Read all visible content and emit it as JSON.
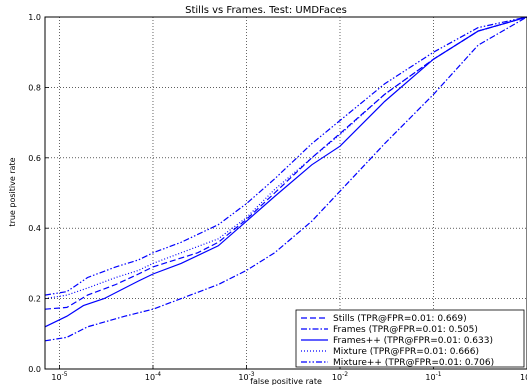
{
  "chart_data": {
    "type": "line",
    "title": "Stills vs Frames. Test: UMDFaces",
    "xlabel": "false positive rate",
    "ylabel": "true positive rate",
    "xscale": "log",
    "xlim": [
      7e-06,
      1.0
    ],
    "ylim": [
      0.0,
      1.0
    ],
    "x_ticks": [
      1e-05,
      0.0001,
      0.001,
      0.01,
      0.1,
      1.0
    ],
    "x_tick_labels": [
      {
        "base": "10",
        "exp": "-5"
      },
      {
        "base": "10",
        "exp": "-4"
      },
      {
        "base": "10",
        "exp": "-3"
      },
      {
        "base": "10",
        "exp": "-2"
      },
      {
        "base": "10",
        "exp": "-1"
      },
      {
        "base": "10",
        "exp": "0"
      }
    ],
    "y_ticks": [
      0.0,
      0.2,
      0.4,
      0.6,
      0.8,
      1.0
    ],
    "y_tick_labels": [
      "0.0",
      "0.2",
      "0.4",
      "0.6",
      "0.8",
      "1.0"
    ],
    "grid": true,
    "legend_position": "bottom-right",
    "series": [
      {
        "name": "Stills (TPR@FPR=0.01: 0.669)",
        "color": "#0000ff",
        "dash": "dashed",
        "x": [
          7e-06,
          1.2e-05,
          2e-05,
          4e-05,
          7e-05,
          0.0001,
          0.0003,
          0.0005,
          0.001,
          0.002,
          0.005,
          0.01,
          0.03,
          0.1,
          0.3,
          1.0
        ],
        "y": [
          0.17,
          0.175,
          0.21,
          0.24,
          0.27,
          0.29,
          0.33,
          0.36,
          0.425,
          0.5,
          0.6,
          0.669,
          0.78,
          0.88,
          0.96,
          1.0
        ]
      },
      {
        "name": "Frames (TPR@FPR=0.01: 0.505)",
        "color": "#0000ff",
        "dash": "dashdot",
        "x": [
          7e-06,
          1.2e-05,
          2e-05,
          5e-05,
          0.0001,
          0.0002,
          0.0005,
          0.001,
          0.002,
          0.005,
          0.01,
          0.03,
          0.1,
          0.3,
          1.0
        ],
        "y": [
          0.08,
          0.09,
          0.12,
          0.15,
          0.17,
          0.2,
          0.24,
          0.28,
          0.33,
          0.42,
          0.505,
          0.64,
          0.78,
          0.92,
          1.0
        ]
      },
      {
        "name": "Frames++ (TPR@FPR=0.01: 0.633)",
        "color": "#0000ff",
        "dash": "solid",
        "x": [
          7e-06,
          1.2e-05,
          1.8e-05,
          3e-05,
          5e-05,
          7e-05,
          0.0001,
          0.0002,
          0.0005,
          0.001,
          0.002,
          0.005,
          0.01,
          0.03,
          0.1,
          0.3,
          1.0
        ],
        "y": [
          0.12,
          0.15,
          0.18,
          0.2,
          0.23,
          0.25,
          0.27,
          0.3,
          0.35,
          0.42,
          0.49,
          0.58,
          0.633,
          0.76,
          0.88,
          0.96,
          1.0
        ]
      },
      {
        "name": "Mixture (TPR@FPR=0.01: 0.666)",
        "color": "#0000ff",
        "dash": "dotted",
        "x": [
          7e-06,
          1.2e-05,
          2e-05,
          4e-05,
          7e-05,
          0.0001,
          0.0002,
          0.0005,
          0.001,
          0.002,
          0.005,
          0.01,
          0.03,
          0.1,
          0.3,
          1.0
        ],
        "y": [
          0.2,
          0.21,
          0.23,
          0.26,
          0.28,
          0.3,
          0.33,
          0.37,
          0.43,
          0.51,
          0.6,
          0.666,
          0.78,
          0.88,
          0.96,
          1.0
        ]
      },
      {
        "name": "Mixture++ (TPR@FPR=0.01: 0.706)",
        "color": "#0000ff",
        "dash": "dashdotdot",
        "x": [
          7e-06,
          1.2e-05,
          2e-05,
          4e-05,
          7e-05,
          0.0001,
          0.0002,
          0.0005,
          0.001,
          0.002,
          0.005,
          0.01,
          0.03,
          0.1,
          0.3,
          1.0
        ],
        "y": [
          0.21,
          0.22,
          0.26,
          0.29,
          0.31,
          0.33,
          0.36,
          0.41,
          0.47,
          0.54,
          0.64,
          0.706,
          0.81,
          0.9,
          0.97,
          1.0
        ]
      }
    ]
  }
}
